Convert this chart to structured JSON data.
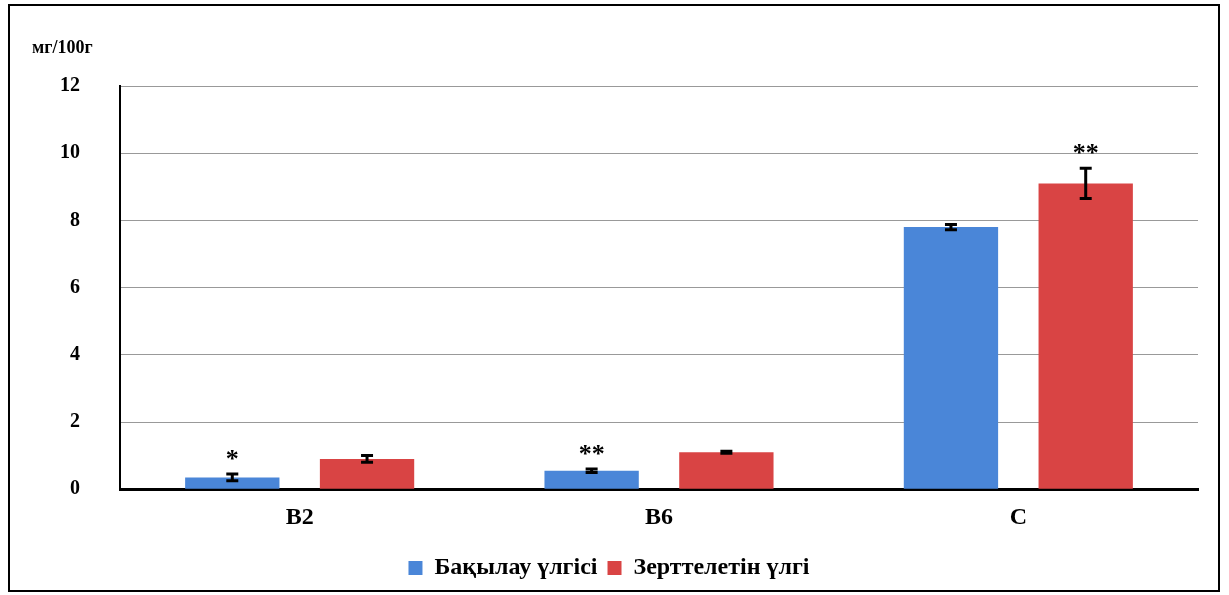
{
  "chart_data": {
    "type": "bar",
    "ylabel": "мг/100г",
    "categories": [
      "B2",
      "B6",
      "C"
    ],
    "series": [
      {
        "name": "Бақылау үлгісі",
        "color": "#4a86d8",
        "values": [
          0.35,
          0.55,
          7.8
        ],
        "errors": [
          0.1,
          0.05,
          0.08
        ],
        "value_labels": [
          "*",
          "**",
          null
        ]
      },
      {
        "name": "Зерттелетін үлгі",
        "color": "#d94444",
        "values": [
          0.9,
          1.1,
          9.1
        ],
        "errors": [
          0.1,
          0.03,
          0.45
        ],
        "value_labels": [
          null,
          null,
          "**"
        ]
      }
    ],
    "ylim": [
      0,
      12
    ],
    "yticks": [
      0,
      2,
      4,
      6,
      8,
      10,
      12
    ],
    "grid": "y",
    "legend": "bottom"
  }
}
